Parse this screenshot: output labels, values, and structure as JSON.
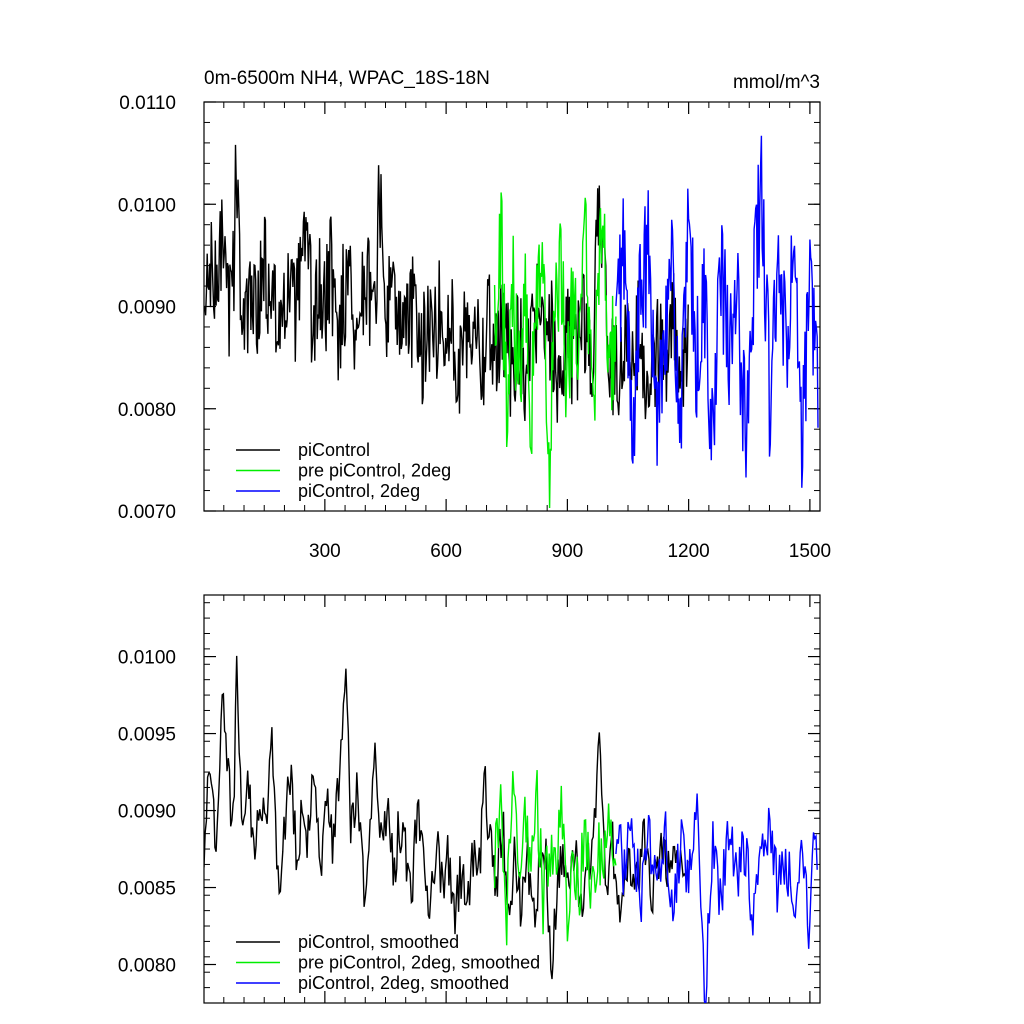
{
  "chart_data": [
    {
      "type": "line",
      "title_left": "0m-6500m NH4, WPAC_18S-18N",
      "title_right": "mmol/m^3",
      "xlim": [
        1,
        1525
      ],
      "ylim": [
        0.007,
        0.011
      ],
      "x_ticks": [
        300,
        600,
        900,
        1200,
        1500
      ],
      "x_tick_labels": [
        "300",
        "600",
        "900",
        "1200",
        "1500"
      ],
      "y_ticks": [
        0.007,
        0.008,
        0.009,
        0.01,
        0.011
      ],
      "y_tick_labels": [
        "0.0070",
        "0.0080",
        "0.0090",
        "0.0100",
        "0.0110"
      ],
      "legend_position": "bottom-left",
      "series": [
        {
          "name": "piControl",
          "color": "#000000",
          "x_range": [
            1,
            1200
          ],
          "points": [
            [
              1,
              0.0088
            ],
            [
              15,
              0.0094
            ],
            [
              30,
              0.0091
            ],
            [
              45,
              0.0097
            ],
            [
              60,
              0.0089
            ],
            [
              75,
              0.0094
            ],
            [
              80,
              0.0108
            ],
            [
              90,
              0.0092
            ],
            [
              105,
              0.0087
            ],
            [
              120,
              0.0093
            ],
            [
              135,
              0.009
            ],
            [
              150,
              0.0095
            ],
            [
              165,
              0.0089
            ],
            [
              180,
              0.0091
            ],
            [
              195,
              0.0086
            ],
            [
              210,
              0.0093
            ],
            [
              225,
              0.0089
            ],
            [
              240,
              0.0092
            ],
            [
              255,
              0.0096
            ],
            [
              270,
              0.0088
            ],
            [
              285,
              0.0092
            ],
            [
              300,
              0.0089
            ],
            [
              315,
              0.0094
            ],
            [
              330,
              0.0087
            ],
            [
              345,
              0.0091
            ],
            [
              360,
              0.0093
            ],
            [
              375,
              0.0088
            ],
            [
              390,
              0.009
            ],
            [
              405,
              0.0094
            ],
            [
              420,
              0.0087
            ],
            [
              435,
              0.0101
            ],
            [
              450,
              0.0089
            ],
            [
              465,
              0.0092
            ],
            [
              480,
              0.0086
            ],
            [
              495,
              0.009
            ],
            [
              510,
              0.0088
            ],
            [
              525,
              0.0091
            ],
            [
              540,
              0.0085
            ],
            [
              555,
              0.0089
            ],
            [
              570,
              0.0087
            ],
            [
              585,
              0.009
            ],
            [
              600,
              0.0086
            ],
            [
              615,
              0.0088
            ],
            [
              630,
              0.0084
            ],
            [
              645,
              0.0089
            ],
            [
              660,
              0.0087
            ],
            [
              675,
              0.009
            ],
            [
              690,
              0.0085
            ],
            [
              705,
              0.0088
            ],
            [
              720,
              0.0086
            ],
            [
              740,
              0.0089
            ],
            [
              760,
              0.0084
            ],
            [
              780,
              0.0088
            ],
            [
              800,
              0.0083
            ],
            [
              820,
              0.009
            ],
            [
              840,
              0.0085
            ],
            [
              860,
              0.0088
            ],
            [
              880,
              0.0082
            ],
            [
              900,
              0.0087
            ],
            [
              920,
              0.0085
            ],
            [
              940,
              0.0089
            ],
            [
              960,
              0.0084
            ],
            [
              980,
              0.0102
            ],
            [
              1000,
              0.0086
            ],
            [
              1020,
              0.0083
            ],
            [
              1040,
              0.0087
            ],
            [
              1060,
              0.0085
            ],
            [
              1080,
              0.0088
            ],
            [
              1100,
              0.0082
            ],
            [
              1120,
              0.0086
            ],
            [
              1140,
              0.0084
            ],
            [
              1160,
              0.009
            ],
            [
              1180,
              0.0083
            ],
            [
              1200,
              0.0086
            ]
          ]
        },
        {
          "name": "pre piControl, 2deg",
          "color": "#00ee00",
          "x_range": [
            720,
            1020
          ],
          "points": [
            [
              720,
              0.009
            ],
            [
              735,
              0.0098
            ],
            [
              750,
              0.0079
            ],
            [
              765,
              0.0093
            ],
            [
              780,
              0.0082
            ],
            [
              795,
              0.0096
            ],
            [
              810,
              0.008
            ],
            [
              825,
              0.0091
            ],
            [
              840,
              0.0097
            ],
            [
              855,
              0.0072
            ],
            [
              870,
              0.0089
            ],
            [
              885,
              0.0094
            ],
            [
              900,
              0.0081
            ],
            [
              915,
              0.0092
            ],
            [
              930,
              0.0085
            ],
            [
              945,
              0.0096
            ],
            [
              960,
              0.008
            ],
            [
              975,
              0.0088
            ],
            [
              990,
              0.01
            ],
            [
              1005,
              0.0083
            ],
            [
              1020,
              0.0089
            ]
          ]
        },
        {
          "name": "piControl, 2deg",
          "color": "#0000ff",
          "x_range": [
            1020,
            1520
          ],
          "points": [
            [
              1020,
              0.0088
            ],
            [
              1040,
              0.0096
            ],
            [
              1060,
              0.0077
            ],
            [
              1080,
              0.0091
            ],
            [
              1100,
              0.0095
            ],
            [
              1120,
              0.0079
            ],
            [
              1140,
              0.0089
            ],
            [
              1160,
              0.0093
            ],
            [
              1180,
              0.0078
            ],
            [
              1200,
              0.0097
            ],
            [
              1220,
              0.0084
            ],
            [
              1240,
              0.0091
            ],
            [
              1260,
              0.0076
            ],
            [
              1280,
              0.0094
            ],
            [
              1300,
              0.0085
            ],
            [
              1320,
              0.009
            ],
            [
              1340,
              0.0078
            ],
            [
              1360,
              0.0092
            ],
            [
              1380,
              0.0102
            ],
            [
              1400,
              0.0081
            ],
            [
              1420,
              0.0093
            ],
            [
              1440,
              0.0086
            ],
            [
              1460,
              0.0095
            ],
            [
              1480,
              0.0075
            ],
            [
              1500,
              0.0092
            ],
            [
              1520,
              0.0084
            ]
          ]
        }
      ]
    },
    {
      "type": "line",
      "xlim": [
        1,
        1525
      ],
      "ylim": [
        0.00775,
        0.0104
      ],
      "x_ticks": [
        300,
        600,
        900,
        1200,
        1500
      ],
      "y_ticks": [
        0.008,
        0.0085,
        0.009,
        0.0095,
        0.01
      ],
      "y_tick_labels": [
        "0.0080",
        "0.0085",
        "0.0090",
        "0.0095",
        "0.0100"
      ],
      "legend_position": "bottom-left",
      "series": [
        {
          "name": "piControl, smoothed",
          "color": "#000000",
          "x_range": [
            1,
            1200
          ],
          "points": [
            [
              1,
              0.0088
            ],
            [
              15,
              0.0094
            ],
            [
              30,
              0.0087
            ],
            [
              45,
              0.0098
            ],
            [
              60,
              0.0092
            ],
            [
              75,
              0.0089
            ],
            [
              80,
              0.01
            ],
            [
              95,
              0.009
            ],
            [
              110,
              0.0093
            ],
            [
              125,
              0.0087
            ],
            [
              140,
              0.0091
            ],
            [
              155,
              0.0089
            ],
            [
              170,
              0.0094
            ],
            [
              185,
              0.0085
            ],
            [
              200,
              0.0089
            ],
            [
              215,
              0.0092
            ],
            [
              230,
              0.0087
            ],
            [
              245,
              0.009
            ],
            [
              260,
              0.0088
            ],
            [
              275,
              0.0093
            ],
            [
              290,
              0.0086
            ],
            [
              305,
              0.009
            ],
            [
              320,
              0.0088
            ],
            [
              335,
              0.0092
            ],
            [
              350,
              0.0099
            ],
            [
              365,
              0.0089
            ],
            [
              380,
              0.0092
            ],
            [
              395,
              0.0085
            ],
            [
              410,
              0.0088
            ],
            [
              425,
              0.0094
            ],
            [
              440,
              0.0087
            ],
            [
              455,
              0.0091
            ],
            [
              470,
              0.0086
            ],
            [
              485,
              0.0089
            ],
            [
              500,
              0.0087
            ],
            [
              515,
              0.0085
            ],
            [
              530,
              0.009
            ],
            [
              545,
              0.0086
            ],
            [
              560,
              0.0084
            ],
            [
              575,
              0.0088
            ],
            [
              590,
              0.0085
            ],
            [
              605,
              0.0087
            ],
            [
              620,
              0.0083
            ],
            [
              635,
              0.0086
            ],
            [
              650,
              0.0084
            ],
            [
              665,
              0.0087
            ],
            [
              680,
              0.0085
            ],
            [
              695,
              0.0092
            ],
            [
              710,
              0.0088
            ],
            [
              725,
              0.0085
            ],
            [
              740,
              0.0089
            ],
            [
              755,
              0.0083
            ],
            [
              770,
              0.0087
            ],
            [
              785,
              0.0084
            ],
            [
              800,
              0.0088
            ],
            [
              815,
              0.0082
            ],
            [
              830,
              0.0086
            ],
            [
              845,
              0.0088
            ],
            [
              860,
              0.0079
            ],
            [
              875,
              0.0085
            ],
            [
              890,
              0.0087
            ],
            [
              905,
              0.0084
            ],
            [
              920,
              0.0088
            ],
            [
              935,
              0.0083
            ],
            [
              950,
              0.0086
            ],
            [
              965,
              0.0089
            ],
            [
              980,
              0.0094
            ],
            [
              995,
              0.0085
            ],
            [
              1010,
              0.0088
            ],
            [
              1030,
              0.0084
            ],
            [
              1050,
              0.0087
            ],
            [
              1070,
              0.0085
            ],
            [
              1090,
              0.0088
            ],
            [
              1110,
              0.0084
            ],
            [
              1130,
              0.0087
            ],
            [
              1150,
              0.0086
            ],
            [
              1170,
              0.0088
            ],
            [
              1190,
              0.0085
            ],
            [
              1200,
              0.0086
            ]
          ]
        },
        {
          "name": "pre piControl, 2deg, smoothed",
          "color": "#00ee00",
          "x_range": [
            720,
            1020
          ],
          "points": [
            [
              720,
              0.0087
            ],
            [
              735,
              0.009
            ],
            [
              750,
              0.0083
            ],
            [
              765,
              0.0093
            ],
            [
              780,
              0.0085
            ],
            [
              795,
              0.0089
            ],
            [
              810,
              0.0086
            ],
            [
              825,
              0.0091
            ],
            [
              840,
              0.0084
            ],
            [
              855,
              0.0088
            ],
            [
              870,
              0.0086
            ],
            [
              885,
              0.009
            ],
            [
              900,
              0.0083
            ],
            [
              915,
              0.0087
            ],
            [
              930,
              0.0085
            ],
            [
              945,
              0.0089
            ],
            [
              960,
              0.0084
            ],
            [
              975,
              0.0088
            ],
            [
              990,
              0.0086
            ],
            [
              1005,
              0.0089
            ],
            [
              1020,
              0.0087
            ]
          ]
        },
        {
          "name": "piControl, 2deg, smoothed",
          "color": "#0000ff",
          "x_range": [
            1020,
            1520
          ],
          "points": [
            [
              1020,
              0.0089
            ],
            [
              1040,
              0.0086
            ],
            [
              1060,
              0.009
            ],
            [
              1080,
              0.0084
            ],
            [
              1100,
              0.0088
            ],
            [
              1120,
              0.0085
            ],
            [
              1140,
              0.0089
            ],
            [
              1160,
              0.0083
            ],
            [
              1180,
              0.0088
            ],
            [
              1200,
              0.0086
            ],
            [
              1220,
              0.009
            ],
            [
              1240,
              0.0077
            ],
            [
              1260,
              0.0088
            ],
            [
              1280,
              0.0084
            ],
            [
              1300,
              0.0089
            ],
            [
              1320,
              0.0085
            ],
            [
              1340,
              0.0088
            ],
            [
              1360,
              0.0083
            ],
            [
              1380,
              0.0087
            ],
            [
              1400,
              0.0089
            ],
            [
              1420,
              0.0085
            ],
            [
              1440,
              0.0087
            ],
            [
              1460,
              0.0084
            ],
            [
              1480,
              0.0088
            ],
            [
              1500,
              0.0082
            ],
            [
              1510,
              0.009
            ],
            [
              1520,
              0.0085
            ]
          ]
        }
      ]
    }
  ]
}
